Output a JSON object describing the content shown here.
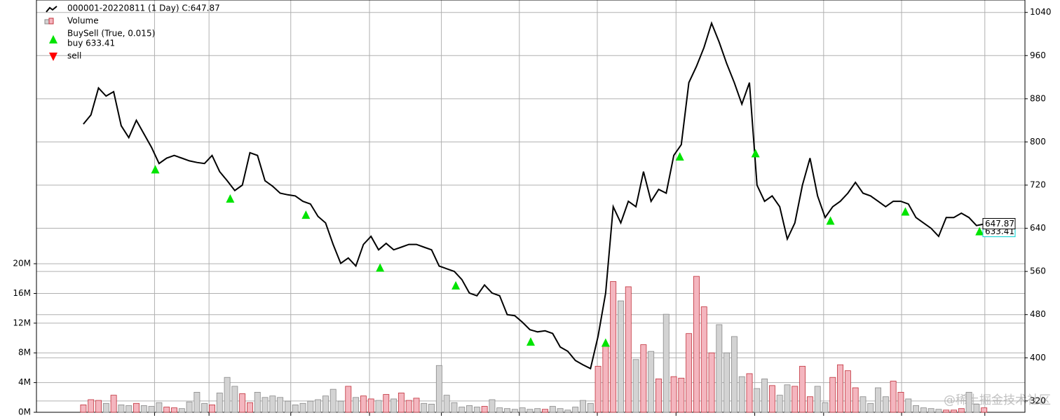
{
  "chart_data": {
    "type": "line",
    "legend": [
      "000001-20220811 (1 Day) C:647.87",
      "Volume",
      "BuySell (True, 0.015)",
      "buy 633.41",
      "sell"
    ],
    "watermark": "@稀土掘金技术社区",
    "xlim": [
      -6.2,
      124.4
    ],
    "xticks": [
      9.4,
      16.6,
      27.4,
      37.8,
      47.3,
      57.6,
      67.9,
      78.3,
      88.7,
      97.8,
      108.1,
      119.1
    ],
    "ylim": [
      299,
      1063
    ],
    "yticks": [
      320,
      400,
      480,
      560,
      640,
      720,
      800,
      880,
      960,
      1040
    ],
    "y2lim": [
      0,
      55500000
    ],
    "y2ticks": [
      {
        "value": 0,
        "label": "0M"
      },
      {
        "value": 4000000,
        "label": "4M"
      },
      {
        "value": 8000000,
        "label": "8M"
      },
      {
        "value": 12000000,
        "label": "12M"
      },
      {
        "value": 16000000,
        "label": "16M"
      },
      {
        "value": 20000000,
        "label": "20M"
      }
    ],
    "grid": true,
    "series": [
      {
        "name": "close",
        "color": "#000000",
        "values": [
          833,
          850,
          900,
          885,
          893,
          830,
          808,
          840,
          815,
          790,
          760,
          770,
          775,
          770,
          765,
          762,
          760,
          775,
          745,
          728,
          710,
          720,
          780,
          775,
          728,
          718,
          705,
          702,
          700,
          690,
          685,
          662,
          650,
          610,
          575,
          585,
          570,
          610,
          625,
          600,
          612,
          600,
          605,
          610,
          610,
          605,
          600,
          570,
          565,
          560,
          545,
          520,
          515,
          535,
          520,
          515,
          480,
          478,
          466,
          452,
          448,
          450,
          445,
          420,
          412,
          395,
          387,
          380,
          440,
          520,
          680,
          650,
          690,
          680,
          745,
          690,
          712,
          705,
          775,
          795,
          910,
          940,
          975,
          1020,
          985,
          945,
          910,
          870,
          910,
          720,
          690,
          700,
          680,
          620,
          650,
          720,
          770,
          700,
          660,
          680,
          690,
          705,
          725,
          705,
          700,
          690,
          680,
          690,
          690,
          685,
          660,
          650,
          640,
          625,
          660,
          660,
          668,
          660,
          645,
          647.87
        ]
      },
      {
        "name": "volume",
        "axis": "y2",
        "up_color": "#f4b6bf",
        "up_edge": "#c0303a",
        "down_color": "#d3d3d3",
        "down_edge": "#8a8a8a",
        "values": [
          1000000,
          1700000,
          1600000,
          1200000,
          2300000,
          1000000,
          900000,
          1200000,
          900000,
          800000,
          1300000,
          700000,
          600000,
          500000,
          1400000,
          2700000,
          1200000,
          1000000,
          2600000,
          4700000,
          3500000,
          2500000,
          1300000,
          2700000,
          2000000,
          2200000,
          2000000,
          1500000,
          1000000,
          1200000,
          1500000,
          1700000,
          2200000,
          3100000,
          1500000,
          3500000,
          2000000,
          2200000,
          1800000,
          1600000,
          2400000,
          1800000,
          2600000,
          1600000,
          1900000,
          1200000,
          1100000,
          6300000,
          2300000,
          1300000,
          700000,
          900000,
          700000,
          800000,
          1700000,
          600000,
          500000,
          400000,
          600000,
          400000,
          500000,
          400000,
          800000,
          500000,
          300000,
          700000,
          1600000,
          1200000,
          6200000,
          9000000,
          17600000,
          15000000,
          16900000,
          7100000,
          9100000,
          8200000,
          4500000,
          13200000,
          4800000,
          4600000,
          10600000,
          18300000,
          14200000,
          8000000,
          11800000,
          8000000,
          10200000,
          4800000,
          5200000,
          3200000,
          4500000,
          3600000,
          2300000,
          3700000,
          3500000,
          6200000,
          2100000,
          3500000,
          1300000,
          4700000,
          6400000,
          5600000,
          3300000,
          2100000,
          1200000,
          3300000,
          2100000,
          4200000,
          2700000,
          1800000,
          900000,
          600000,
          500000,
          400000,
          300000,
          300000,
          500000,
          2700000,
          1100000,
          600000
        ]
      },
      {
        "name": "buy",
        "color": "#00e400",
        "x": [
          9.5,
          19.4,
          29.4,
          39.2,
          49.2,
          59.1,
          69,
          78.8,
          88.8,
          98.7,
          108.6,
          118.4
        ],
        "values": [
          748,
          694,
          664,
          566,
          533,
          429,
          427,
          772,
          778,
          653,
          670,
          633.41
        ]
      },
      {
        "name": "sell",
        "color": "#ff0000",
        "x": [],
        "values": []
      }
    ]
  }
}
